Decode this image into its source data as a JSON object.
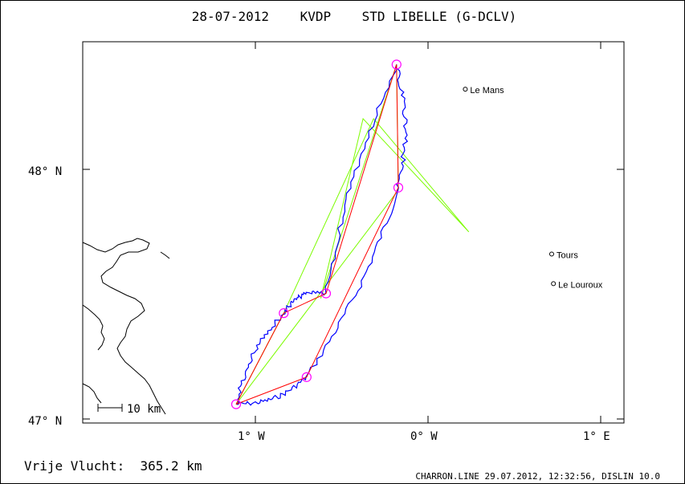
{
  "title": "28-07-2012    KVDP    STD LIBELLE (G-DCLV)",
  "axes": {
    "lat_labels": [
      "48° N",
      "47° N"
    ],
    "lon_labels": [
      "1° W",
      "0° W",
      "1° E"
    ]
  },
  "places": [
    {
      "name": "Le Mans",
      "lon": 0.2,
      "lat": 48.34
    },
    {
      "name": "Tours",
      "lon": 0.69,
      "lat": 47.67
    },
    {
      "name": "Le Louroux",
      "lon": 0.7,
      "lat": 47.55
    }
  ],
  "scale_label": "10 km",
  "distance_label": "Vrije Vlucht:  365.2 km",
  "footer": "CHARRON.LINE 29.07.2012, 12:32:56, DISLIN 10.0",
  "colors": {
    "frame": "#000000",
    "track": "#0000ff",
    "optimized_route": "#ff0000",
    "declared_route": "#7cfc00",
    "turnpoint": "#ff00ff",
    "coast": "#000000"
  },
  "map_extent": {
    "lon_min": -1.97,
    "lon_max": 1.1,
    "lat_min": 47.0,
    "lat_max": 48.5
  },
  "turnpoints": [
    {
      "lon": -1.1,
      "lat": 47.06
    },
    {
      "lon": -0.7,
      "lat": 47.17
    },
    {
      "lon": -0.18,
      "lat": 47.94
    },
    {
      "lon": -0.19,
      "lat": 48.44
    },
    {
      "lon": -0.59,
      "lat": 47.51
    },
    {
      "lon": -0.83,
      "lat": 47.43
    }
  ],
  "declared_route": [
    {
      "lon": -1.1,
      "lat": 47.06
    },
    {
      "lon": -0.18,
      "lat": 47.93
    },
    {
      "lon": -0.19,
      "lat": 48.44
    },
    {
      "lon": -0.62,
      "lat": 47.49
    },
    {
      "lon": -0.38,
      "lat": 48.22
    },
    {
      "lon": 0.22,
      "lat": 47.76
    },
    {
      "lon": -0.32,
      "lat": 48.22
    },
    {
      "lon": -0.83,
      "lat": 47.43
    },
    {
      "lon": -1.1,
      "lat": 47.06
    }
  ]
}
